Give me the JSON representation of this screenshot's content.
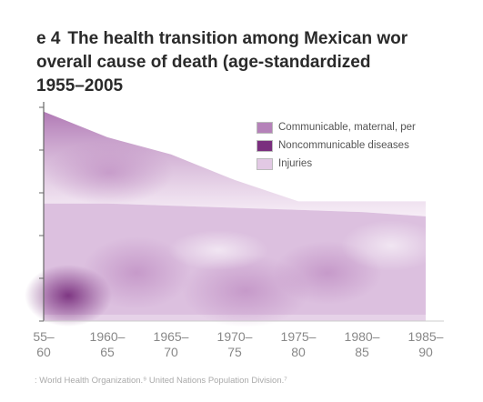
{
  "figure": {
    "label": "e 4",
    "title_line1": "The health transition among Mexican wor",
    "title_line2": "overall cause of death (age-standardized",
    "title_line3": "1955–2005",
    "source": ": World Health Organization.⁹ United Nations Population Division.⁷"
  },
  "chart_data": {
    "type": "area",
    "categories": [
      [
        "55–",
        "60"
      ],
      [
        "1960–",
        "65"
      ],
      [
        "1965–",
        "70"
      ],
      [
        "1970–",
        "75"
      ],
      [
        "1975–",
        "80"
      ],
      [
        "1980–",
        "85"
      ],
      [
        "1985–",
        "90"
      ]
    ],
    "series": [
      {
        "name": "Communicable, maternal, per",
        "values": [
          0.98,
          0.86,
          0.78,
          0.66,
          0.56,
          0.56,
          0.56
        ],
        "color": "#c9a3cc"
      },
      {
        "name": "Noncommunicable diseases",
        "values": [
          0.55,
          0.55,
          0.54,
          0.53,
          0.52,
          0.51,
          0.49
        ],
        "color": "#7a2f7e"
      },
      {
        "name": "Injuries",
        "values": [
          0.03,
          0.03,
          0.03,
          0.03,
          0.03,
          0.03,
          0.03
        ],
        "color": "#e6d2e8"
      }
    ],
    "legend_position": "top-right",
    "grid": false
  }
}
